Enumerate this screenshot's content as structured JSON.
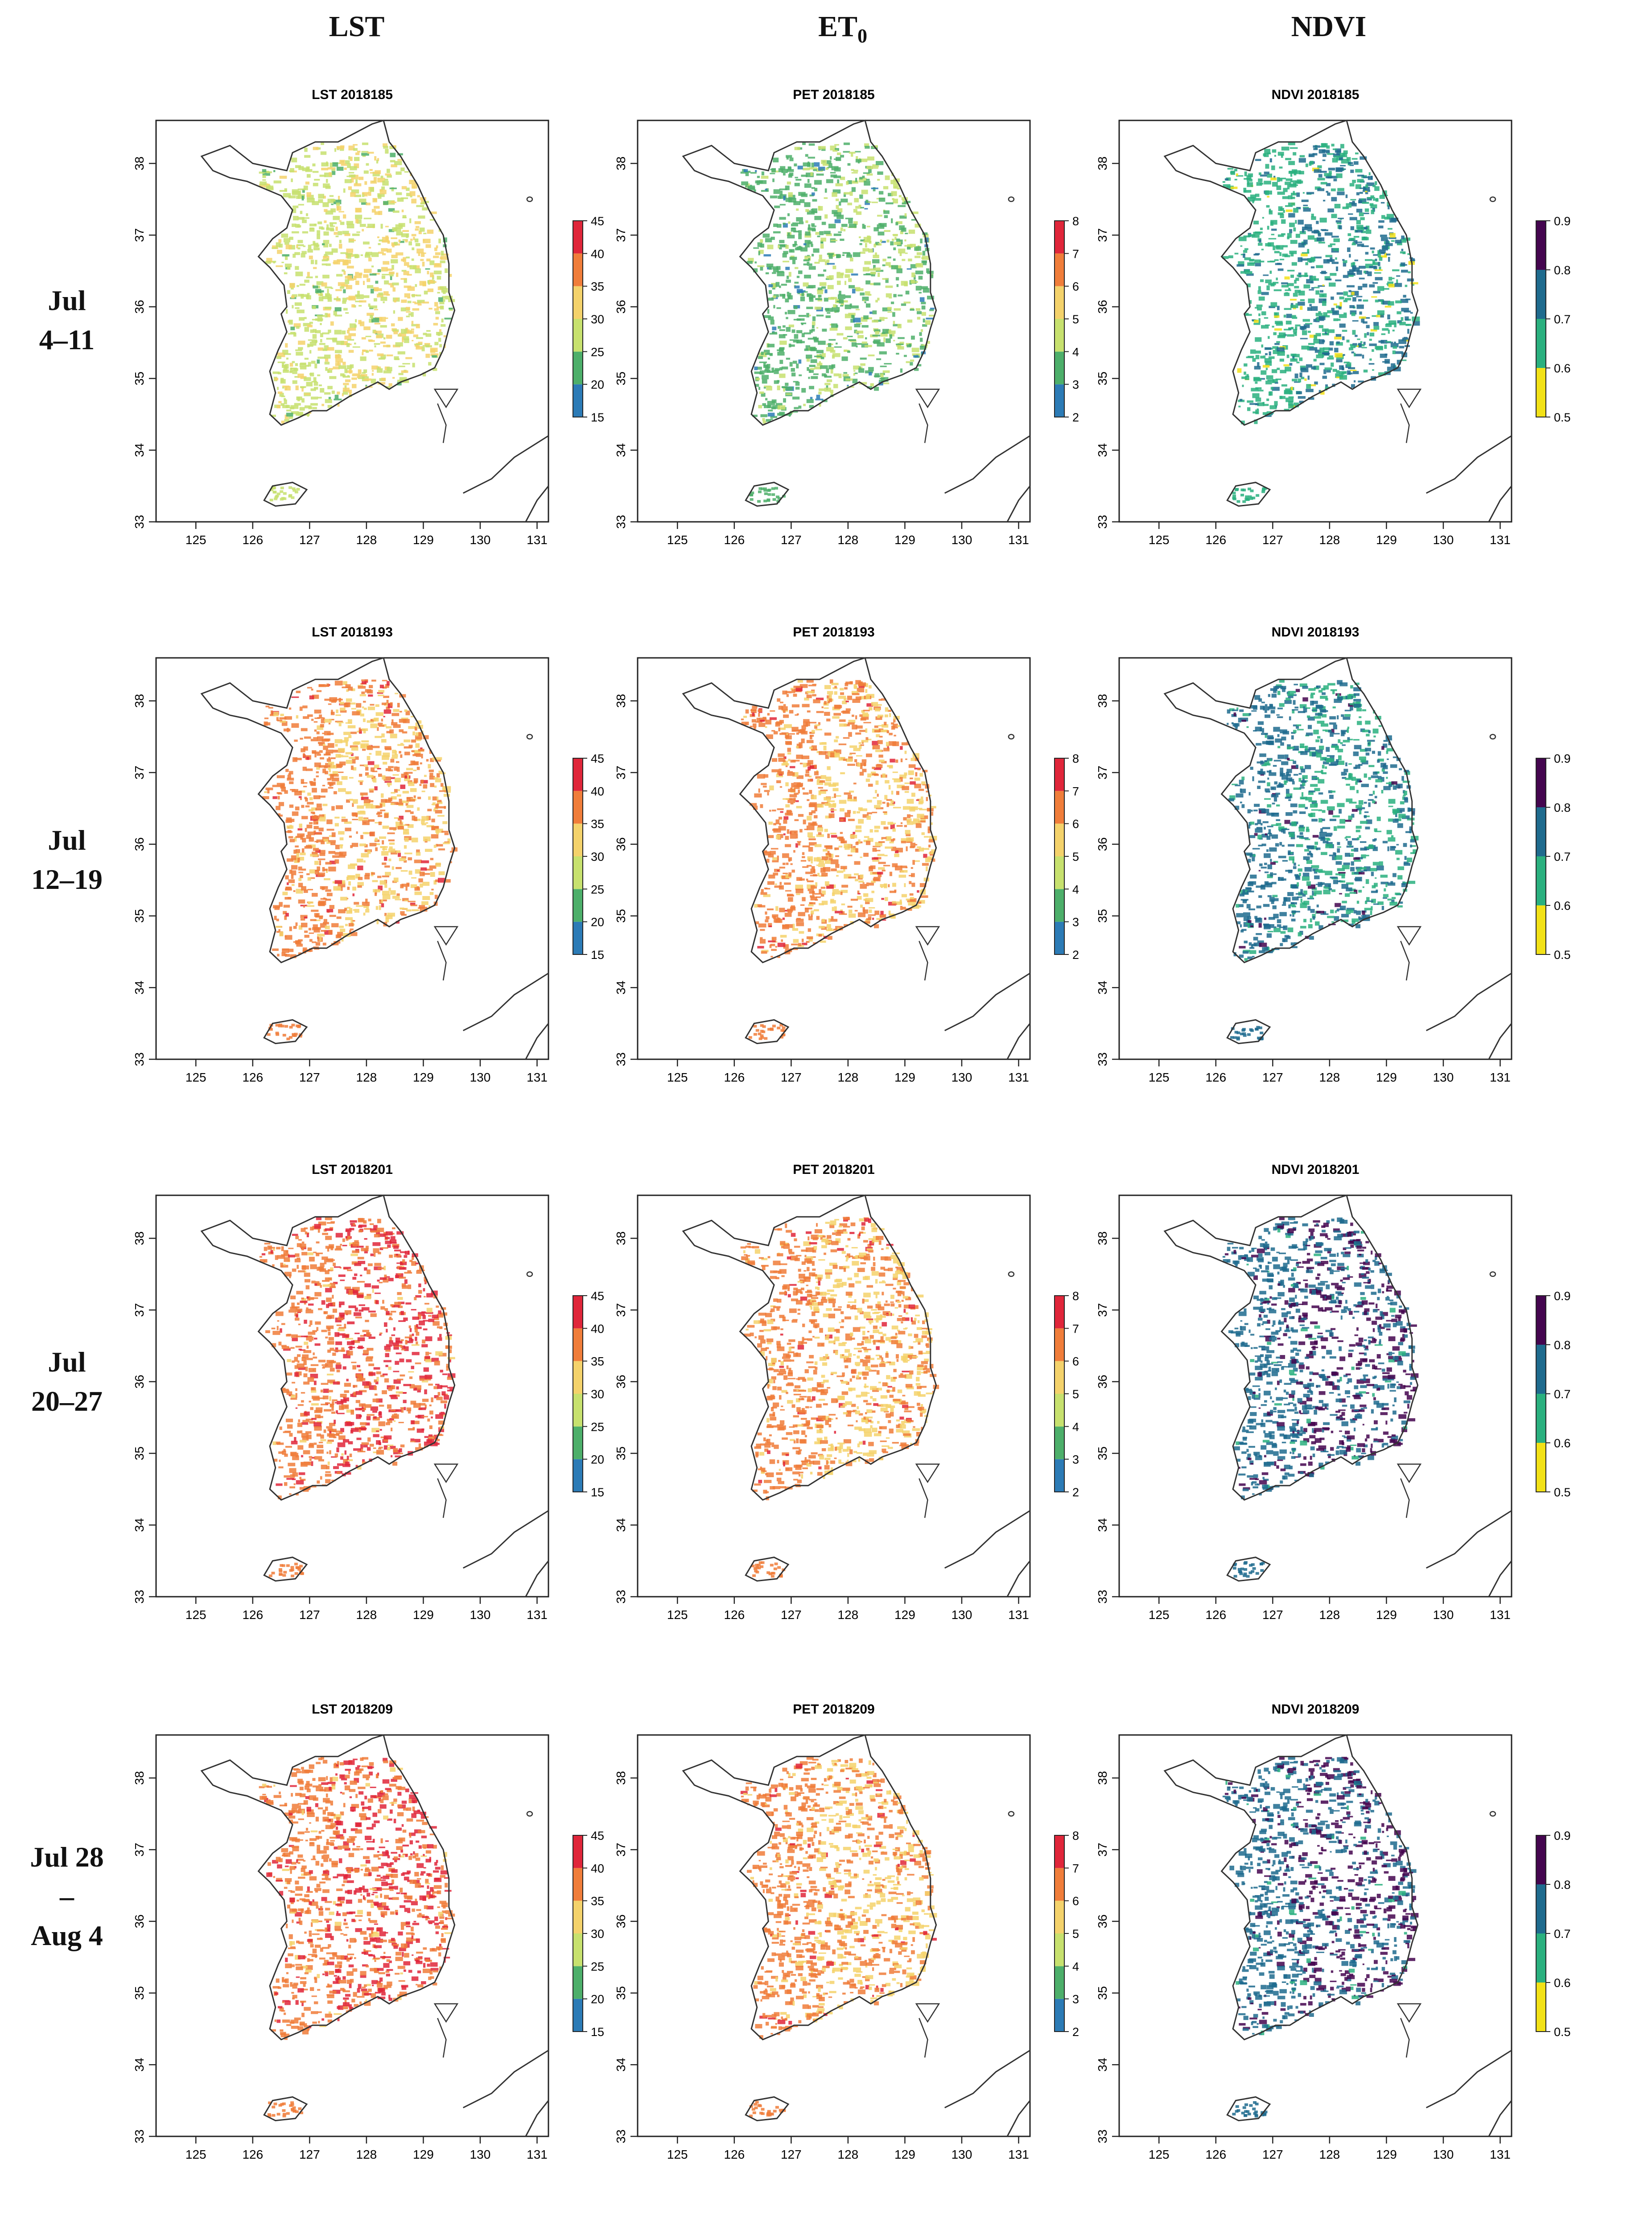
{
  "column_headers": [
    {
      "main": "LST",
      "sub": ""
    },
    {
      "main": "ET",
      "sub": "0"
    },
    {
      "main": "NDVI",
      "sub": ""
    }
  ],
  "row_labels": [
    [
      "Jul",
      "4–11"
    ],
    [
      "Jul",
      "12–19"
    ],
    [
      "Jul",
      "20–27"
    ],
    [
      "Jul 28",
      "–",
      "Aug 4"
    ]
  ],
  "legend_colors": {
    "LST": [
      "#2c7bb6",
      "#4daf6a",
      "#c7e16e",
      "#f4d26b",
      "#f07d3a",
      "#e0263a"
    ],
    "PET": [
      "#2c7bb6",
      "#4daf6a",
      "#c7e16e",
      "#f4d26b",
      "#f07d3a",
      "#e0263a"
    ],
    "NDVI": [
      "#f2e117",
      "#2ab07f",
      "#1f6b8e",
      "#44054f"
    ]
  },
  "chart_data": [
    {
      "type": "map",
      "title": "LST 2018185",
      "variable": "LST",
      "xlabel": "",
      "ylabel": "",
      "xticks": [
        "125",
        "126",
        "127",
        "128",
        "129",
        "130",
        "131"
      ],
      "yticks": [
        "33",
        "34",
        "35",
        "36",
        "37",
        "38"
      ],
      "xlim": [
        124.3,
        131.2
      ],
      "ylim": [
        33,
        38.6
      ],
      "legend_breaks": [
        "15",
        "20",
        "25",
        "30",
        "35",
        "40",
        "45"
      ],
      "dominant_classes": [
        2,
        3
      ]
    },
    {
      "type": "map",
      "title": "PET 2018185",
      "variable": "PET",
      "xlabel": "",
      "ylabel": "",
      "xticks": [
        "125",
        "126",
        "127",
        "128",
        "129",
        "130",
        "131"
      ],
      "yticks": [
        "33",
        "34",
        "35",
        "36",
        "37",
        "38"
      ],
      "xlim": [
        124.3,
        131.2
      ],
      "ylim": [
        33,
        38.6
      ],
      "legend_breaks": [
        "2",
        "3",
        "4",
        "5",
        "6",
        "7",
        "8"
      ],
      "dominant_classes": [
        1,
        2
      ]
    },
    {
      "type": "map",
      "title": "NDVI 2018185",
      "variable": "NDVI",
      "xlabel": "",
      "ylabel": "",
      "xticks": [
        "125",
        "126",
        "127",
        "128",
        "129",
        "130",
        "131"
      ],
      "yticks": [
        "33",
        "34",
        "35",
        "36",
        "37",
        "38"
      ],
      "xlim": [
        124.3,
        131.2
      ],
      "ylim": [
        33,
        38.6
      ],
      "legend_breaks": [
        "0.5",
        "0.6",
        "0.7",
        "0.8",
        "0.9"
      ],
      "dominant_classes": [
        1,
        2
      ]
    },
    {
      "type": "map",
      "title": "LST 2018193",
      "variable": "LST",
      "xlabel": "",
      "ylabel": "",
      "xticks": [
        "125",
        "126",
        "127",
        "128",
        "129",
        "130",
        "131"
      ],
      "yticks": [
        "33",
        "34",
        "35",
        "36",
        "37",
        "38"
      ],
      "xlim": [
        124.3,
        131.2
      ],
      "ylim": [
        33,
        38.6
      ],
      "legend_breaks": [
        "15",
        "20",
        "25",
        "30",
        "35",
        "40",
        "45"
      ],
      "dominant_classes": [
        4,
        3
      ]
    },
    {
      "type": "map",
      "title": "PET 2018193",
      "variable": "PET",
      "xlabel": "",
      "ylabel": "",
      "xticks": [
        "125",
        "126",
        "127",
        "128",
        "129",
        "130",
        "131"
      ],
      "yticks": [
        "33",
        "34",
        "35",
        "36",
        "37",
        "38"
      ],
      "xlim": [
        124.3,
        131.2
      ],
      "ylim": [
        33,
        38.6
      ],
      "legend_breaks": [
        "2",
        "3",
        "4",
        "5",
        "6",
        "7",
        "8"
      ],
      "dominant_classes": [
        4,
        3
      ]
    },
    {
      "type": "map",
      "title": "NDVI 2018193",
      "variable": "NDVI",
      "xlabel": "",
      "ylabel": "",
      "xticks": [
        "125",
        "126",
        "127",
        "128",
        "129",
        "130",
        "131"
      ],
      "yticks": [
        "33",
        "34",
        "35",
        "36",
        "37",
        "38"
      ],
      "xlim": [
        124.3,
        131.2
      ],
      "ylim": [
        33,
        38.6
      ],
      "legend_breaks": [
        "0.5",
        "0.6",
        "0.7",
        "0.8",
        "0.9"
      ],
      "dominant_classes": [
        2,
        1
      ]
    },
    {
      "type": "map",
      "title": "LST 2018201",
      "variable": "LST",
      "xlabel": "",
      "ylabel": "",
      "xticks": [
        "125",
        "126",
        "127",
        "128",
        "129",
        "130",
        "131"
      ],
      "yticks": [
        "33",
        "34",
        "35",
        "36",
        "37",
        "38"
      ],
      "xlim": [
        124.3,
        131.2
      ],
      "ylim": [
        33,
        38.6
      ],
      "legend_breaks": [
        "15",
        "20",
        "25",
        "30",
        "35",
        "40",
        "45"
      ],
      "dominant_classes": [
        4,
        5
      ]
    },
    {
      "type": "map",
      "title": "PET 2018201",
      "variable": "PET",
      "xlabel": "",
      "ylabel": "",
      "xticks": [
        "125",
        "126",
        "127",
        "128",
        "129",
        "130",
        "131"
      ],
      "yticks": [
        "33",
        "34",
        "35",
        "36",
        "37",
        "38"
      ],
      "xlim": [
        124.3,
        131.2
      ],
      "ylim": [
        33,
        38.6
      ],
      "legend_breaks": [
        "2",
        "3",
        "4",
        "5",
        "6",
        "7",
        "8"
      ],
      "dominant_classes": [
        4,
        3
      ]
    },
    {
      "type": "map",
      "title": "NDVI 2018201",
      "variable": "NDVI",
      "xlabel": "",
      "ylabel": "",
      "xticks": [
        "125",
        "126",
        "127",
        "128",
        "129",
        "130",
        "131"
      ],
      "yticks": [
        "33",
        "34",
        "35",
        "36",
        "37",
        "38"
      ],
      "xlim": [
        124.3,
        131.2
      ],
      "ylim": [
        33,
        38.6
      ],
      "legend_breaks": [
        "0.5",
        "0.6",
        "0.7",
        "0.8",
        "0.9"
      ],
      "dominant_classes": [
        2,
        3
      ]
    },
    {
      "type": "map",
      "title": "LST 2018209",
      "variable": "LST",
      "xlabel": "",
      "ylabel": "",
      "xticks": [
        "125",
        "126",
        "127",
        "128",
        "129",
        "130",
        "131"
      ],
      "yticks": [
        "33",
        "34",
        "35",
        "36",
        "37",
        "38"
      ],
      "xlim": [
        124.3,
        131.2
      ],
      "ylim": [
        33,
        38.6
      ],
      "legend_breaks": [
        "15",
        "20",
        "25",
        "30",
        "35",
        "40",
        "45"
      ],
      "dominant_classes": [
        4,
        5
      ]
    },
    {
      "type": "map",
      "title": "PET 2018209",
      "variable": "PET",
      "xlabel": "",
      "ylabel": "",
      "xticks": [
        "125",
        "126",
        "127",
        "128",
        "129",
        "130",
        "131"
      ],
      "yticks": [
        "33",
        "34",
        "35",
        "36",
        "37",
        "38"
      ],
      "xlim": [
        124.3,
        131.2
      ],
      "ylim": [
        33,
        38.6
      ],
      "legend_breaks": [
        "2",
        "3",
        "4",
        "5",
        "6",
        "7",
        "8"
      ],
      "dominant_classes": [
        4,
        3
      ]
    },
    {
      "type": "map",
      "title": "NDVI 2018209",
      "variable": "NDVI",
      "xlabel": "",
      "ylabel": "",
      "xticks": [
        "125",
        "126",
        "127",
        "128",
        "129",
        "130",
        "131"
      ],
      "yticks": [
        "33",
        "34",
        "35",
        "36",
        "37",
        "38"
      ],
      "xlim": [
        124.3,
        131.2
      ],
      "ylim": [
        33,
        38.6
      ],
      "legend_breaks": [
        "0.5",
        "0.6",
        "0.7",
        "0.8",
        "0.9"
      ],
      "dominant_classes": [
        2,
        3
      ]
    }
  ]
}
